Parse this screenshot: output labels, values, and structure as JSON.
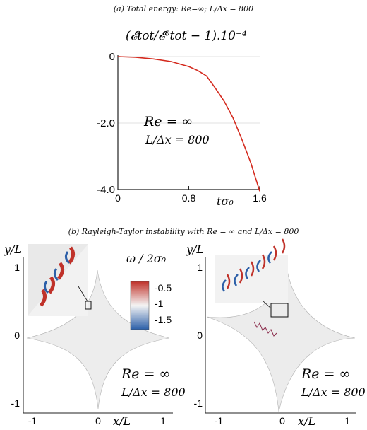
{
  "panel_a": {
    "caption": "(a) Total energy: Re=∞; L/Δx = 800",
    "ylabel": "(𝓔tot/𝓔⁰tot − 1).10⁻⁴",
    "xlabel": "tσ₀",
    "legend_re": "Re = ∞",
    "legend_res": "L/Δx = 800"
  },
  "panel_b": {
    "caption": "(b) Rayleigh-Taylor instability with Re = ∞ and L/Δx = 800",
    "ylabel": "y/L",
    "xlabel": "x/L",
    "colorbar_title": "ω / 2σ₀",
    "colorbar_ticks": [
      "-0.5",
      "-1",
      "-1.5"
    ],
    "legend_re": "Re = ∞",
    "legend_res": "L/Δx = 800",
    "x_ticks": [
      "-1",
      "0",
      "1"
    ],
    "y_ticks": [
      "1",
      "0",
      "-1"
    ]
  },
  "chart_data": [
    {
      "type": "line",
      "title": "(a) Total energy: Re=∞; L/Δx = 800",
      "xlabel": "tσ₀",
      "ylabel": "(𝓔tot/𝓔⁰tot − 1).10⁻⁴",
      "xlim": [
        0,
        1.6
      ],
      "ylim": [
        -4.0,
        0
      ],
      "x_ticks": [
        "0",
        "0.8",
        "1.6"
      ],
      "y_ticks": [
        "0",
        "-2.0",
        "-4.0"
      ],
      "grid": true,
      "color": "#d42a1e",
      "series": [
        {
          "x": [
            0,
            0.2,
            0.4,
            0.6,
            0.8,
            0.9,
            1.0,
            1.1,
            1.2,
            1.3,
            1.4,
            1.5,
            1.6
          ],
          "y": [
            0,
            -0.02,
            -0.07,
            -0.15,
            -0.3,
            -0.42,
            -0.58,
            -0.95,
            -1.35,
            -1.85,
            -2.5,
            -3.2,
            -4.05
          ]
        }
      ]
    },
    {
      "type": "heatmap",
      "title": "(b) Rayleigh-Taylor instability with Re = ∞ and L/Δx = 800",
      "xlabel": "x/L",
      "ylabel": "y/L",
      "colorbar": {
        "label": "ω/2σ₀",
        "ticks": [
          -0.5,
          -1,
          -1.5
        ],
        "colors": [
          "#c0322a",
          "#f4f4f4",
          "#2c5fa8"
        ]
      }
    }
  ]
}
